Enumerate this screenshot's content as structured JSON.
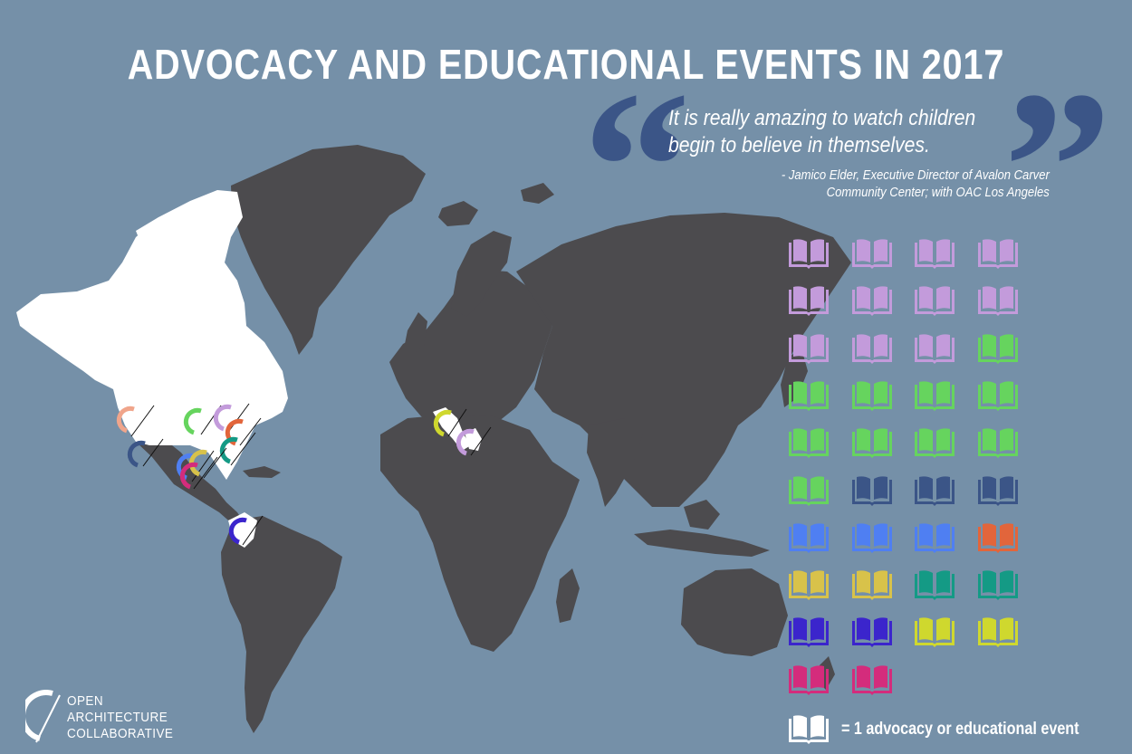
{
  "title": "ADVOCACY AND EDUCATIONAL EVENTS IN 2017",
  "quote": {
    "open_mark": "“",
    "close_mark": "”",
    "line1": "It is really amazing to watch children",
    "line2": "begin to believe in themselves.",
    "attribution_line1": "- Jamico Elder, Executive Director of Avalon Carver",
    "attribution_line2": "Community Center; with OAC Los Angeles"
  },
  "legend": {
    "label": "= 1 advocacy or educational event",
    "icon": "open-book-icon"
  },
  "logo": {
    "line1": "OPEN",
    "line2": "ARCHITECTURE",
    "line3": "COLLABORATIVE",
    "icon": "oac-logo-icon"
  },
  "colors": {
    "background": "#7590a8",
    "land": "#4c4b4e",
    "highlight_land": "#ffffff",
    "quote_marks": "#3b5587",
    "lavender": "#c39bdb",
    "green": "#66d45e",
    "navy": "#3b5587",
    "blue": "#4f7ff2",
    "orange": "#e2653b",
    "gold": "#d8c24a",
    "teal": "#149a85",
    "indigo": "#3b25cc",
    "lime": "#cfd82e",
    "magenta": "#d42c7c",
    "salmon": "#f0a58b"
  },
  "event_icons": [
    {
      "chapter_color": "lavender",
      "count": 11
    },
    {
      "chapter_color": "green",
      "count": 10
    },
    {
      "chapter_color": "navy",
      "count": 3
    },
    {
      "chapter_color": "blue",
      "count": 3
    },
    {
      "chapter_color": "orange",
      "count": 1
    },
    {
      "chapter_color": "gold",
      "count": 2
    },
    {
      "chapter_color": "teal",
      "count": 2
    },
    {
      "chapter_color": "indigo",
      "count": 2
    },
    {
      "chapter_color": "lime",
      "count": 2
    },
    {
      "chapter_color": "magenta",
      "count": 2
    }
  ],
  "total_events": 38,
  "chapter_markers": [
    {
      "region": "los-angeles",
      "color": "salmon"
    },
    {
      "region": "san-diego",
      "color": "navy"
    },
    {
      "region": "chicago",
      "color": "green"
    },
    {
      "region": "detroit",
      "color": "lavender"
    },
    {
      "region": "washington-dc",
      "color": "orange"
    },
    {
      "region": "raleigh",
      "color": "teal"
    },
    {
      "region": "houston",
      "color": "blue"
    },
    {
      "region": "new-orleans",
      "color": "gold"
    },
    {
      "region": "austin",
      "color": "magenta"
    },
    {
      "region": "colombia",
      "color": "indigo"
    },
    {
      "region": "italy",
      "color": "lime"
    },
    {
      "region": "greece",
      "color": "lavender"
    }
  ]
}
